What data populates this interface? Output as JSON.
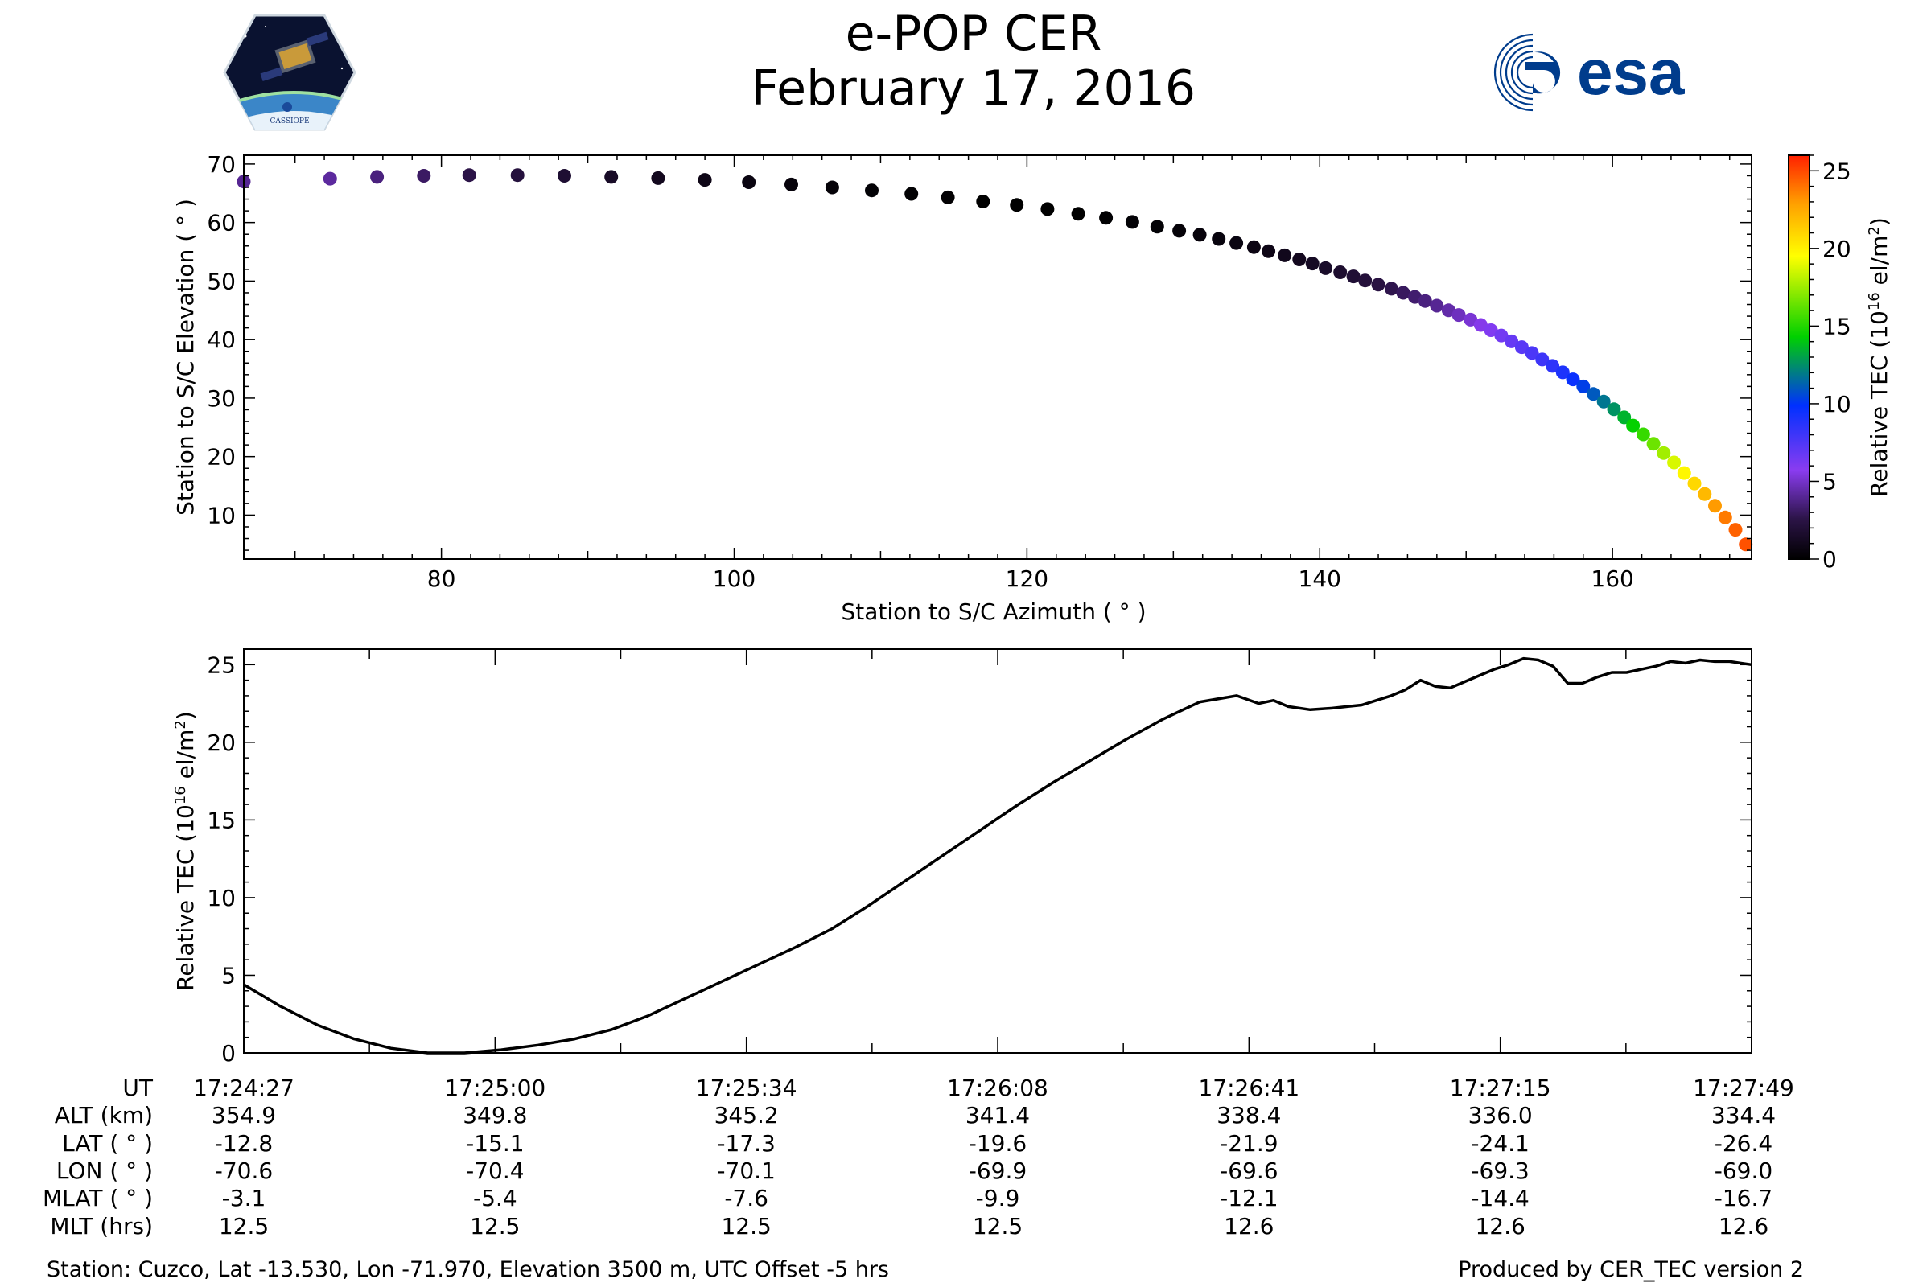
{
  "header": {
    "title": "e-POP CER",
    "date": "February 17, 2016",
    "left_logo": "cassiope-logo",
    "right_logo": "esa-logo",
    "left_logo_text": "CASSIOPE",
    "right_logo_text": "esa"
  },
  "colors": {
    "line": "#000000",
    "esa_blue": "#003c8c",
    "colormap": [
      "#000000",
      "#3a1a5c",
      "#8a3cf0",
      "#0030ff",
      "#00d000",
      "#ffff00",
      "#ffa000",
      "#ff2000"
    ]
  },
  "chart_data": [
    {
      "type": "scatter",
      "xlabel": "Station to S/C Azimuth ( ° )",
      "ylabel": "Station to S/C Elevation ( ° )",
      "xlim": [
        66.5,
        169.5
      ],
      "ylim": [
        2.5,
        71.5
      ],
      "xticks": [
        80,
        100,
        120,
        140,
        160
      ],
      "yticks": [
        10,
        20,
        30,
        40,
        50,
        60,
        70
      ],
      "colorbar": {
        "label": "Relative TEC (10^16 el/m^2)",
        "label_main": "Relative TEC (10",
        "label_exp": "16",
        "label_unit": " el/m",
        "label_exp2": "2",
        "label_close": ")",
        "range": [
          0,
          26
        ],
        "ticks": [
          0,
          5,
          10,
          15,
          20,
          25
        ]
      },
      "azimuth": [
        66.5,
        72.4,
        75.6,
        78.8,
        81.9,
        85.2,
        88.4,
        91.6,
        94.8,
        98.0,
        101.0,
        103.9,
        106.7,
        109.4,
        112.1,
        114.6,
        117.0,
        119.3,
        121.4,
        123.5,
        125.4,
        127.2,
        128.9,
        130.4,
        131.8,
        133.1,
        134.3,
        135.5,
        136.5,
        137.6,
        138.6,
        139.5,
        140.4,
        141.4,
        142.3,
        143.1,
        144.0,
        144.9,
        145.7,
        146.5,
        147.2,
        148.0,
        148.8,
        149.5,
        150.3,
        151.0,
        151.7,
        152.4,
        153.1,
        153.8,
        154.5,
        155.2,
        155.9,
        156.6,
        157.3,
        158.0,
        158.7,
        159.4,
        160.1,
        160.8,
        161.4,
        162.1,
        162.8,
        163.5,
        164.2,
        164.9,
        165.6,
        166.3,
        167.0,
        167.7,
        168.4,
        169.1
      ],
      "elevation": [
        67.0,
        67.5,
        67.8,
        68.0,
        68.1,
        68.1,
        68.0,
        67.8,
        67.6,
        67.3,
        66.9,
        66.5,
        66.0,
        65.5,
        64.9,
        64.3,
        63.6,
        63.0,
        62.3,
        61.5,
        60.8,
        60.1,
        59.3,
        58.6,
        57.9,
        57.2,
        56.5,
        55.8,
        55.1,
        54.4,
        53.7,
        53.0,
        52.2,
        51.5,
        50.8,
        50.1,
        49.4,
        48.7,
        48.0,
        47.3,
        46.6,
        45.8,
        45.0,
        44.2,
        43.4,
        42.5,
        41.6,
        40.7,
        39.7,
        38.7,
        37.7,
        36.6,
        35.5,
        34.4,
        33.2,
        32.0,
        30.7,
        29.4,
        28.1,
        26.7,
        25.3,
        23.8,
        22.2,
        20.6,
        19.0,
        17.2,
        15.4,
        13.6,
        11.6,
        9.6,
        7.5,
        5.0
      ],
      "tec": [
        4.0,
        4.2,
        3.6,
        3.1,
        2.6,
        2.2,
        1.8,
        1.4,
        1.1,
        0.8,
        0.6,
        0.4,
        0.3,
        0.2,
        0.1,
        0.1,
        0.0,
        0.0,
        0.0,
        0.0,
        0.1,
        0.2,
        0.2,
        0.3,
        0.4,
        0.5,
        0.6,
        0.7,
        0.8,
        1.0,
        1.1,
        1.3,
        1.5,
        1.7,
        1.9,
        2.1,
        2.4,
        2.7,
        3.0,
        3.3,
        3.6,
        4.0,
        4.4,
        4.8,
        5.2,
        5.6,
        6.0,
        6.4,
        6.8,
        7.2,
        7.6,
        8.0,
        8.5,
        9.0,
        9.6,
        10.3,
        11.0,
        11.8,
        12.6,
        13.5,
        14.4,
        15.4,
        16.5,
        17.6,
        18.7,
        19.8,
        20.9,
        22.0,
        23.0,
        23.8,
        24.4,
        24.8
      ]
    },
    {
      "type": "line",
      "xlabel": "",
      "ylabel": "Relative TEC (10^16 el/m^2)",
      "ylabel_main": "Relative TEC (10",
      "ylabel_exp": "16",
      "ylabel_unit": " el/m",
      "ylabel_exp2": "2",
      "ylabel_close": ")",
      "xlim": [
        0,
        205
      ],
      "ylim": [
        0,
        26
      ],
      "yticks": [
        0,
        5,
        10,
        15,
        20,
        25
      ],
      "x": [
        0,
        5,
        10,
        15,
        20,
        25,
        30,
        35,
        40,
        45,
        50,
        55,
        60,
        65,
        70,
        75,
        80,
        85,
        90,
        95,
        100,
        105,
        110,
        115,
        120,
        125,
        130,
        135,
        138,
        140,
        142,
        145,
        148,
        150,
        152,
        154,
        156,
        158,
        160,
        162,
        164,
        166,
        168,
        170,
        172,
        174,
        176,
        178,
        180,
        182,
        184,
        186,
        188,
        190,
        192,
        194,
        196,
        198,
        200,
        202,
        205
      ],
      "y": [
        4.4,
        3.0,
        1.8,
        0.9,
        0.3,
        0.0,
        0.0,
        0.2,
        0.5,
        0.9,
        1.5,
        2.4,
        3.5,
        4.6,
        5.7,
        6.8,
        8.0,
        9.5,
        11.1,
        12.7,
        14.3,
        15.9,
        17.4,
        18.8,
        20.2,
        21.5,
        22.6,
        23.0,
        22.5,
        22.7,
        22.3,
        22.1,
        22.2,
        22.3,
        22.4,
        22.7,
        23.0,
        23.4,
        24.0,
        23.6,
        23.5,
        23.9,
        24.3,
        24.7,
        25.0,
        25.4,
        25.3,
        24.9,
        23.8,
        23.8,
        24.2,
        24.5,
        24.5,
        24.7,
        24.9,
        25.2,
        25.1,
        25.3,
        25.2,
        25.2,
        25.0
      ]
    }
  ],
  "table": {
    "row_labels": [
      "UT",
      "ALT (km)",
      "LAT ( ° )",
      "LON ( ° )",
      "MLAT ( ° )",
      "MLT (hrs)"
    ],
    "columns": [
      [
        "17:24:27",
        "354.9",
        "-12.8",
        "-70.6",
        "-3.1",
        "12.5"
      ],
      [
        "17:25:00",
        "349.8",
        "-15.1",
        "-70.4",
        "-5.4",
        "12.5"
      ],
      [
        "17:25:34",
        "345.2",
        "-17.3",
        "-70.1",
        "-7.6",
        "12.5"
      ],
      [
        "17:26:08",
        "341.4",
        "-19.6",
        "-69.9",
        "-9.9",
        "12.5"
      ],
      [
        "17:26:41",
        "338.4",
        "-21.9",
        "-69.6",
        "-12.1",
        "12.6"
      ],
      [
        "17:27:15",
        "336.0",
        "-24.1",
        "-69.3",
        "-14.4",
        "12.6"
      ],
      [
        "17:27:49",
        "334.4",
        "-26.4",
        "-69.0",
        "-16.7",
        "12.6"
      ]
    ]
  },
  "footer": {
    "station": "Station: Cuzco, Lat -13.530, Lon -71.970, Elevation 3500 m, UTC Offset -5 hrs",
    "produced_by": "Produced by CER_TEC version 2"
  }
}
